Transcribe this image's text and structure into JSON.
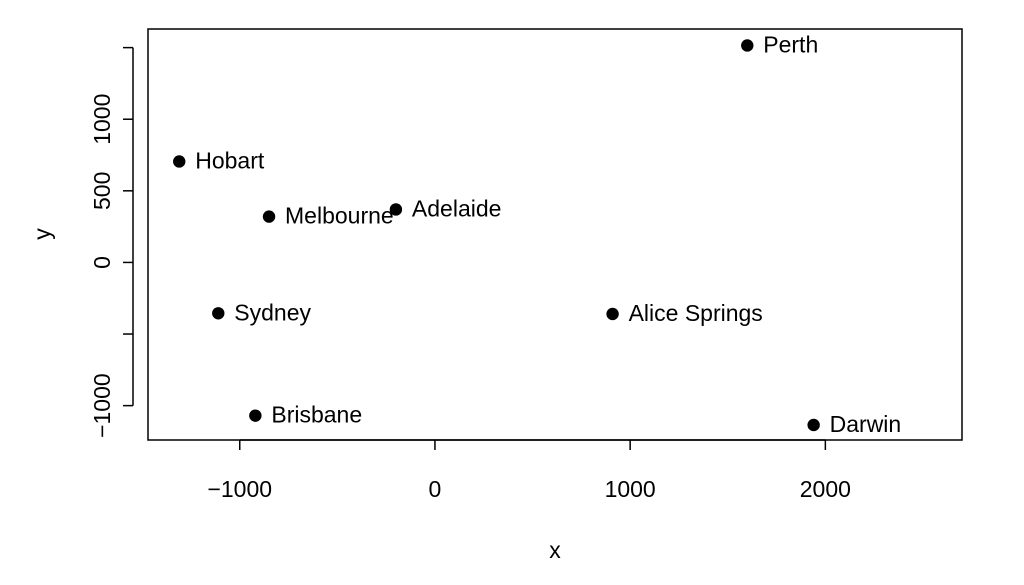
{
  "chart_data": {
    "type": "scatter",
    "title": "",
    "xlabel": "x",
    "ylabel": "y",
    "xlim": [
      -1470,
      2700
    ],
    "ylim": [
      -1240,
      1630
    ],
    "x_ticks": [
      {
        "value": -1000,
        "label": "−1000"
      },
      {
        "value": 0,
        "label": "0"
      },
      {
        "value": 1000,
        "label": "1000"
      },
      {
        "value": 2000,
        "label": "2000"
      }
    ],
    "y_ticks": [
      {
        "value": -1000,
        "label": "−1000"
      },
      {
        "value": -500,
        "label": ""
      },
      {
        "value": 0,
        "label": "0"
      },
      {
        "value": 500,
        "label": "500"
      },
      {
        "value": 1000,
        "label": "1000"
      },
      {
        "value": 1500,
        "label": ""
      }
    ],
    "grid": false,
    "points": [
      {
        "label": "Perth",
        "x": 1600,
        "y": 1515
      },
      {
        "label": "Hobart",
        "x": -1310,
        "y": 705
      },
      {
        "label": "Adelaide",
        "x": -200,
        "y": 370
      },
      {
        "label": "Melbourne",
        "x": -850,
        "y": 320
      },
      {
        "label": "Sydney",
        "x": -1110,
        "y": -355
      },
      {
        "label": "Alice Springs",
        "x": 910,
        "y": -360
      },
      {
        "label": "Brisbane",
        "x": -920,
        "y": -1070
      },
      {
        "label": "Darwin",
        "x": 1940,
        "y": -1135
      }
    ]
  }
}
